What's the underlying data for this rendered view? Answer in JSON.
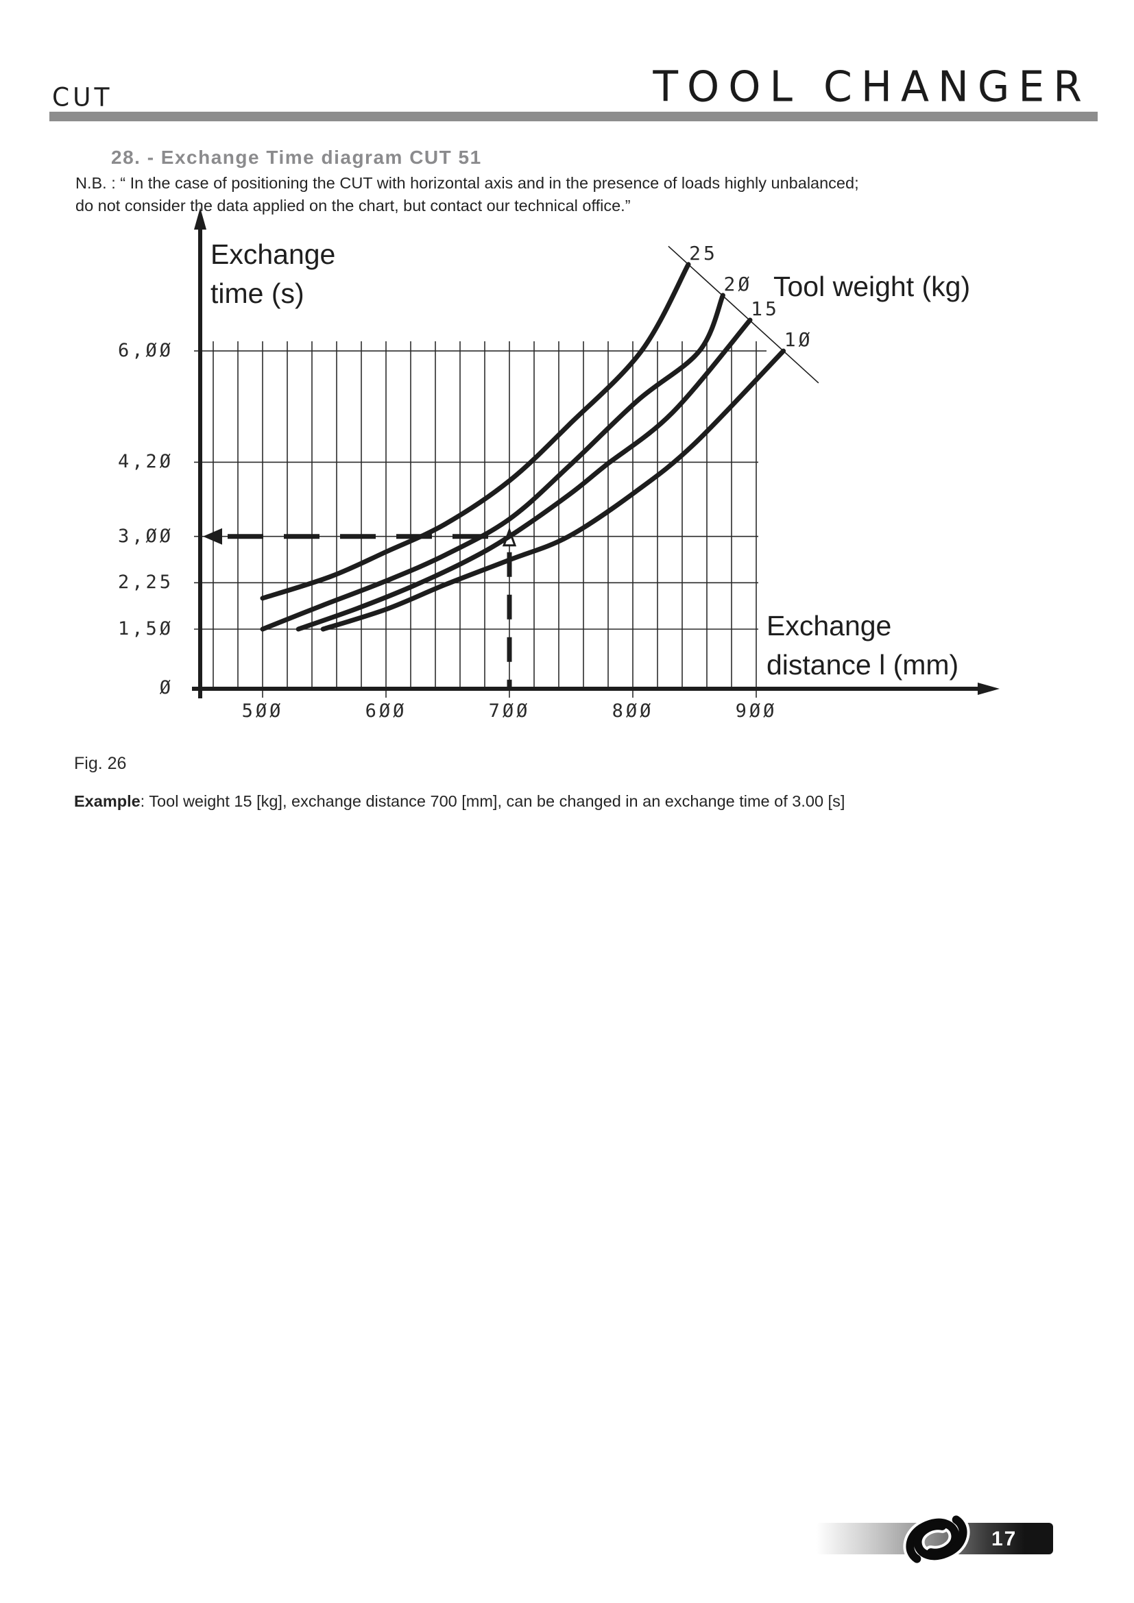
{
  "page": {
    "header": {
      "product": "CUT",
      "title": "TOOL CHANGER"
    },
    "section": {
      "heading": "28. - Exchange Time diagram  CUT 51",
      "note_line1": "N.B. : “ In the case of positioning the CUT with horizontal axis and in the presence of loads highly unbalanced;",
      "note_line2": "do not consider the data applied on the chart, but contact our technical office.”"
    },
    "figure": {
      "caption": "Fig. 26"
    },
    "example": {
      "label": "Example",
      "text": ": Tool weight 15 [kg], exchange distance 700 [mm], can be changed in an exchange time of 3.00 [s]"
    },
    "footer": {
      "page_number": "17",
      "logo": "knot-logo"
    }
  },
  "chart_data": {
    "type": "line",
    "title": "Exchange Time diagram CUT 51",
    "grid": true,
    "y_axis": {
      "label_line1": "Exchange",
      "label_line2": "time (s)",
      "unit": "s",
      "ticks": [
        {
          "value": 6.0,
          "display": "6,ØØ"
        },
        {
          "value": 4.2,
          "display": "4,2Ø"
        },
        {
          "value": 3.0,
          "display": "3,ØØ"
        },
        {
          "value": 2.25,
          "display": "2,25"
        },
        {
          "value": 1.5,
          "display": "1,5Ø"
        },
        {
          "value": 0,
          "display": "Ø"
        }
      ]
    },
    "x_axis": {
      "label_line1": "Exchange",
      "label_line2": "distance  l (mm)",
      "unit": "mm",
      "minor_step": 20,
      "minor_range": [
        460,
        900
      ],
      "ticks": [
        {
          "value": 500,
          "display": "5ØØ"
        },
        {
          "value": 600,
          "display": "6ØØ"
        },
        {
          "value": 700,
          "display": "7ØØ"
        },
        {
          "value": 800,
          "display": "8ØØ"
        },
        {
          "value": 900,
          "display": "9ØØ"
        }
      ]
    },
    "legend": {
      "title": "Tool weight  (kg)",
      "position": "top-right"
    },
    "series": [
      {
        "name": "25",
        "display": "25",
        "weight_kg": 25,
        "points": [
          [
            500,
            2.0
          ],
          [
            555,
            2.35
          ],
          [
            600,
            2.75
          ],
          [
            648,
            3.2
          ],
          [
            700,
            3.9
          ],
          [
            748,
            4.8
          ],
          [
            807,
            6.0
          ],
          [
            845,
            7.4
          ]
        ]
      },
      {
        "name": "20",
        "display": "2Ø",
        "weight_kg": 20,
        "points": [
          [
            500,
            1.5
          ],
          [
            548,
            1.88
          ],
          [
            600,
            2.28
          ],
          [
            648,
            2.7
          ],
          [
            700,
            3.28
          ],
          [
            749,
            4.15
          ],
          [
            804,
            5.2
          ],
          [
            854,
            6.0
          ],
          [
            873,
            6.9
          ]
        ]
      },
      {
        "name": "15",
        "display": "15",
        "weight_kg": 15,
        "points": [
          [
            529,
            1.5
          ],
          [
            576,
            1.83
          ],
          [
            621,
            2.19
          ],
          [
            665,
            2.6
          ],
          [
            700,
            3.0
          ],
          [
            748,
            3.67
          ],
          [
            778,
            4.15
          ],
          [
            832,
            5.0
          ],
          [
            895,
            6.5
          ]
        ]
      },
      {
        "name": "10",
        "display": "1Ø",
        "weight_kg": 10,
        "points": [
          [
            549,
            1.5
          ],
          [
            600,
            1.82
          ],
          [
            648,
            2.22
          ],
          [
            700,
            2.62
          ],
          [
            748,
            3.0
          ],
          [
            802,
            3.72
          ],
          [
            850,
            4.5
          ],
          [
            922,
            6.0
          ]
        ]
      }
    ],
    "example_point": {
      "weight_kg": 15,
      "distance_mm": 700,
      "time_s": 3.0
    },
    "colors": {
      "ink": "#1d1d1d",
      "grid": "#2b2b2b",
      "heading_gray": "#8b8b8d",
      "rule_gray": "#8d8d8d"
    }
  }
}
